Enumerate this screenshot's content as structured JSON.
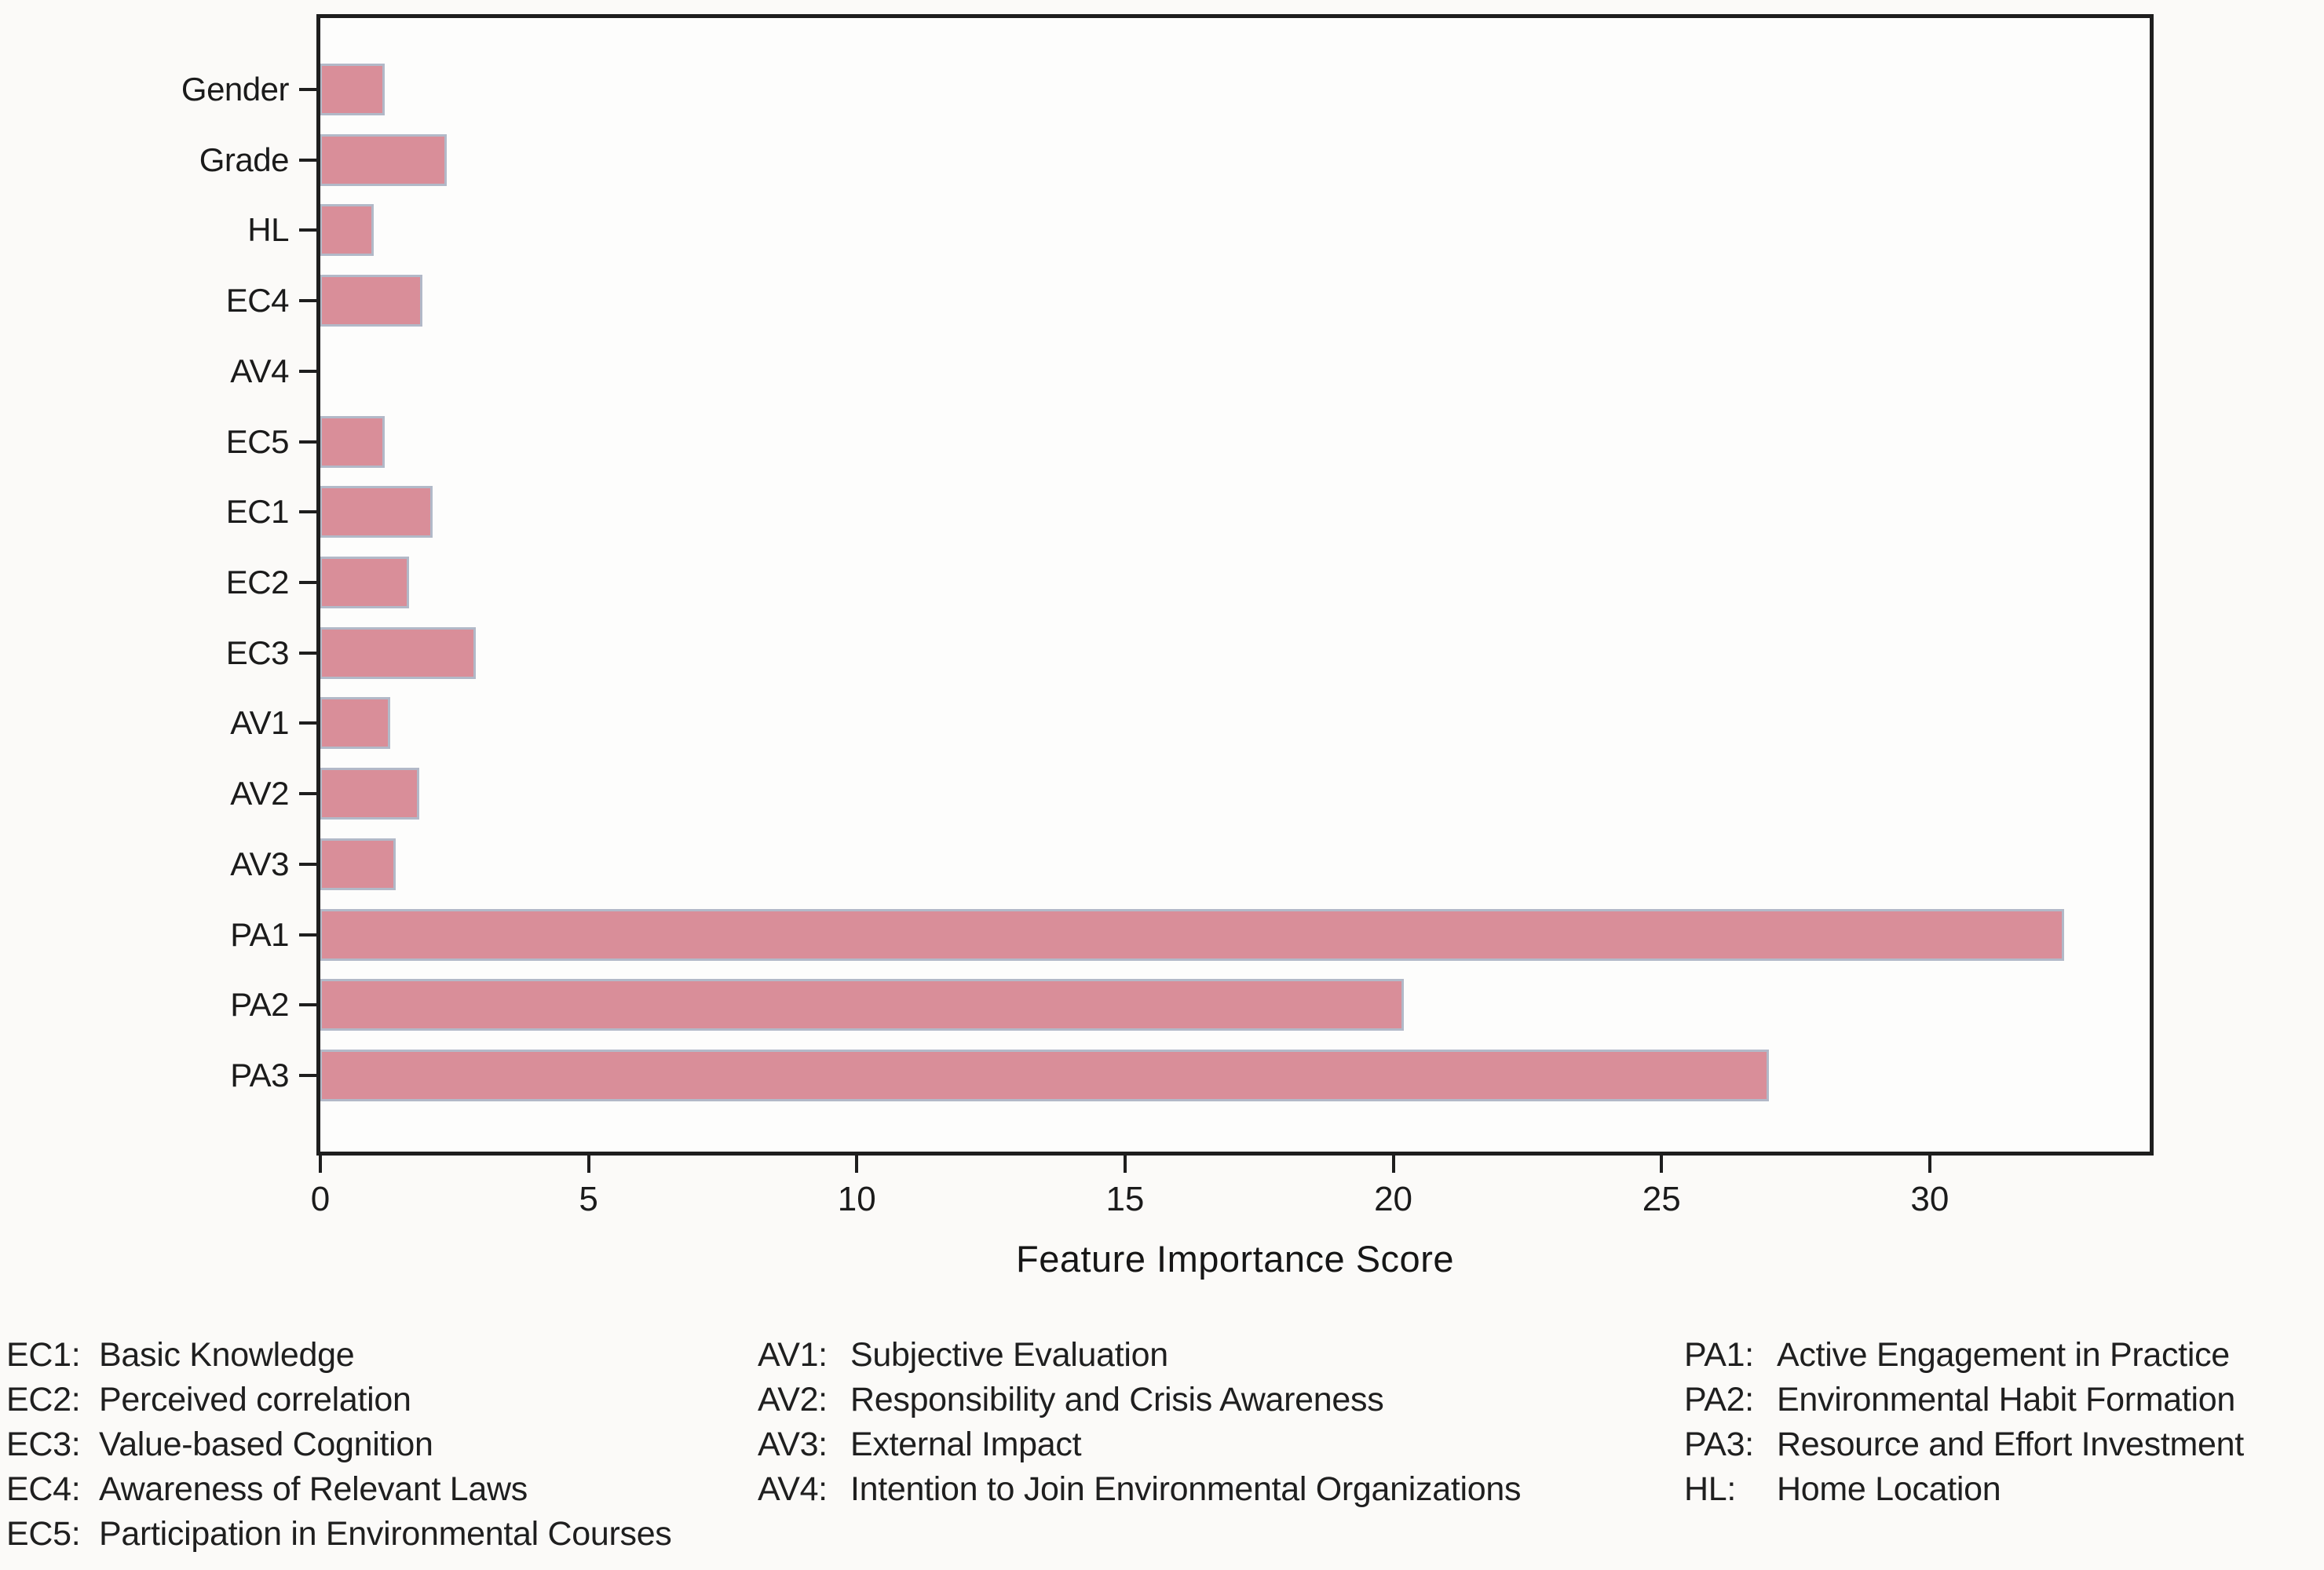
{
  "chart_data": {
    "type": "bar",
    "orientation": "horizontal",
    "title": "",
    "xlabel": "Feature Importance Score",
    "ylabel": "",
    "categories": [
      "Gender",
      "Grade",
      "HL",
      "EC4",
      "AV4",
      "EC5",
      "EC1",
      "EC2",
      "EC3",
      "AV1",
      "AV2",
      "AV3",
      "PA1",
      "PA2",
      "PA3"
    ],
    "values": [
      1.2,
      2.35,
      1.0,
      1.9,
      0,
      1.2,
      2.1,
      1.65,
      2.9,
      1.3,
      1.85,
      1.4,
      32.5,
      20.2,
      27.0
    ],
    "xticks": [
      0,
      5,
      10,
      15,
      20,
      25,
      30
    ],
    "xlim": [
      0,
      34.1
    ],
    "grid": false,
    "legend_position": "below-figure",
    "bar_color": "#d98e99",
    "bar_edge_color": "#b2b9c8",
    "axis_color": "#1e1e1e"
  },
  "legend": {
    "columns": [
      {
        "items": [
          {
            "code": "EC1:",
            "label": "Basic Knowledge"
          },
          {
            "code": "EC2:",
            "label": "Perceived correlation"
          },
          {
            "code": "EC3:",
            "label": "Value-based Cognition"
          },
          {
            "code": "EC4:",
            "label": "Awareness of Relevant Laws"
          },
          {
            "code": "EC5:",
            "label": "Participation in Environmental Courses"
          }
        ]
      },
      {
        "items": [
          {
            "code": "AV1:",
            "label": "Subjective Evaluation"
          },
          {
            "code": "AV2:",
            "label": "Responsibility and Crisis Awareness"
          },
          {
            "code": "AV3:",
            "label": "External Impact"
          },
          {
            "code": "AV4:",
            "label": "Intention to Join Environmental Organizations"
          }
        ]
      },
      {
        "items": [
          {
            "code": "PA1:",
            "label": "Active Engagement in Practice"
          },
          {
            "code": "PA2:",
            "label": "Environmental Habit Formation"
          },
          {
            "code": "PA3:",
            "label": "Resource and Effort Investment"
          },
          {
            "code": "HL:",
            "label": "Home Location"
          }
        ]
      }
    ]
  }
}
